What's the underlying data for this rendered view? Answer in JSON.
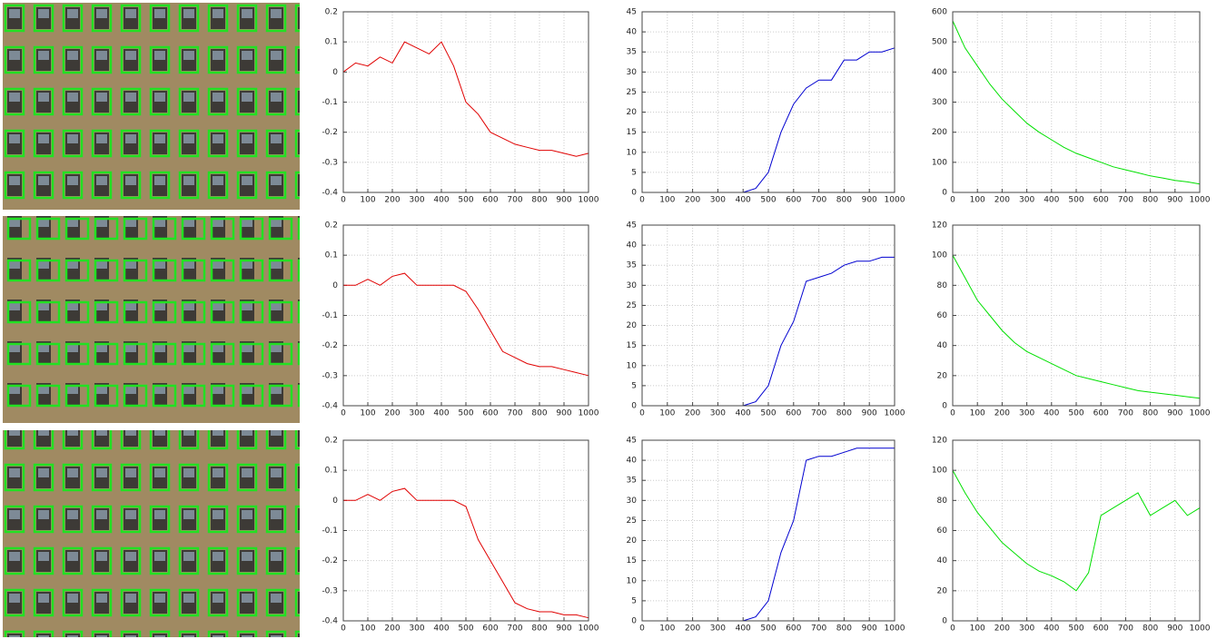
{
  "chart_data": [
    {
      "type": "line",
      "x": [
        0,
        50,
        100,
        150,
        200,
        250,
        300,
        350,
        400,
        450,
        500,
        550,
        600,
        650,
        700,
        750,
        800,
        850,
        900,
        950,
        1000
      ],
      "values": [
        0,
        0.03,
        0.02,
        0.05,
        0.03,
        0.1,
        0.08,
        0.06,
        0.1,
        0.02,
        -0.1,
        -0.14,
        -0.2,
        -0.22,
        -0.24,
        -0.25,
        -0.26,
        -0.26,
        -0.27,
        -0.28,
        -0.27
      ],
      "color": "#e00000",
      "xlim": [
        0,
        1000
      ],
      "ylim": [
        -0.4,
        0.2
      ],
      "xticks": [
        0,
        100,
        200,
        300,
        400,
        500,
        600,
        700,
        800,
        900,
        1000
      ],
      "yticks": [
        -0.4,
        -0.3,
        -0.2,
        -0.1,
        0,
        0.1,
        0.2
      ],
      "grid": true
    },
    {
      "type": "line",
      "x": [
        0,
        50,
        100,
        150,
        200,
        250,
        300,
        350,
        400,
        450,
        500,
        550,
        600,
        650,
        700,
        750,
        800,
        850,
        900,
        950,
        1000
      ],
      "values": [
        0,
        0,
        0,
        0,
        0,
        0,
        0,
        0,
        0,
        1,
        5,
        15,
        22,
        26,
        28,
        28,
        33,
        33,
        35,
        35,
        36
      ],
      "color": "#0000d0",
      "xlim": [
        0,
        1000
      ],
      "ylim": [
        0,
        45
      ],
      "xticks": [
        0,
        100,
        200,
        300,
        400,
        500,
        600,
        700,
        800,
        900,
        1000
      ],
      "yticks": [
        0,
        5,
        10,
        15,
        20,
        25,
        30,
        35,
        40,
        45
      ],
      "grid": true
    },
    {
      "type": "line",
      "x": [
        0,
        50,
        100,
        150,
        200,
        250,
        300,
        350,
        400,
        450,
        500,
        550,
        600,
        650,
        700,
        750,
        800,
        850,
        900,
        950,
        1000
      ],
      "values": [
        570,
        480,
        420,
        360,
        310,
        270,
        230,
        200,
        175,
        150,
        130,
        115,
        100,
        85,
        75,
        65,
        55,
        48,
        40,
        35,
        28
      ],
      "color": "#00e000",
      "xlim": [
        0,
        1000
      ],
      "ylim": [
        0,
        600
      ],
      "xticks": [
        0,
        100,
        200,
        300,
        400,
        500,
        600,
        700,
        800,
        900,
        1000
      ],
      "yticks": [
        0,
        100,
        200,
        300,
        400,
        500,
        600
      ],
      "grid": true
    },
    {
      "type": "line",
      "x": [
        0,
        50,
        100,
        150,
        200,
        250,
        300,
        350,
        400,
        450,
        500,
        550,
        600,
        650,
        700,
        750,
        800,
        850,
        900,
        950,
        1000
      ],
      "values": [
        0,
        0,
        0.02,
        0,
        0.03,
        0.04,
        0,
        0,
        0,
        0,
        -0.02,
        -0.08,
        -0.15,
        -0.22,
        -0.24,
        -0.26,
        -0.27,
        -0.27,
        -0.28,
        -0.29,
        -0.3
      ],
      "color": "#e00000",
      "xlim": [
        0,
        1000
      ],
      "ylim": [
        -0.4,
        0.2
      ],
      "xticks": [
        0,
        100,
        200,
        300,
        400,
        500,
        600,
        700,
        800,
        900,
        1000
      ],
      "yticks": [
        -0.4,
        -0.3,
        -0.2,
        -0.1,
        0,
        0.1,
        0.2
      ],
      "grid": true
    },
    {
      "type": "line",
      "x": [
        0,
        50,
        100,
        150,
        200,
        250,
        300,
        350,
        400,
        450,
        500,
        550,
        600,
        650,
        700,
        750,
        800,
        850,
        900,
        950,
        1000
      ],
      "values": [
        0,
        0,
        0,
        0,
        0,
        0,
        0,
        0,
        0,
        1,
        5,
        15,
        21,
        31,
        32,
        33,
        35,
        36,
        36,
        37,
        37
      ],
      "color": "#0000d0",
      "xlim": [
        0,
        1000
      ],
      "ylim": [
        0,
        45
      ],
      "xticks": [
        0,
        100,
        200,
        300,
        400,
        500,
        600,
        700,
        800,
        900,
        1000
      ],
      "yticks": [
        0,
        5,
        10,
        15,
        20,
        25,
        30,
        35,
        40,
        45
      ],
      "grid": true
    },
    {
      "type": "line",
      "x": [
        0,
        50,
        100,
        150,
        200,
        250,
        300,
        350,
        400,
        450,
        500,
        550,
        600,
        650,
        700,
        750,
        800,
        850,
        900,
        950,
        1000
      ],
      "values": [
        100,
        85,
        70,
        60,
        50,
        42,
        36,
        32,
        28,
        24,
        20,
        18,
        16,
        14,
        12,
        10,
        9,
        8,
        7,
        6,
        5
      ],
      "color": "#00e000",
      "xlim": [
        0,
        1000
      ],
      "ylim": [
        0,
        120
      ],
      "xticks": [
        0,
        100,
        200,
        300,
        400,
        500,
        600,
        700,
        800,
        900,
        1000
      ],
      "yticks": [
        0,
        20,
        40,
        60,
        80,
        100,
        120
      ],
      "grid": true
    },
    {
      "type": "line",
      "x": [
        0,
        50,
        100,
        150,
        200,
        250,
        300,
        350,
        400,
        450,
        500,
        550,
        600,
        650,
        700,
        750,
        800,
        850,
        900,
        950,
        1000
      ],
      "values": [
        0,
        0,
        0.02,
        0,
        0.03,
        0.04,
        0,
        0,
        0,
        0,
        -0.02,
        -0.13,
        -0.2,
        -0.27,
        -0.34,
        -0.36,
        -0.37,
        -0.37,
        -0.38,
        -0.38,
        -0.39
      ],
      "color": "#e00000",
      "xlim": [
        0,
        1000
      ],
      "ylim": [
        -0.4,
        0.2
      ],
      "xticks": [
        0,
        100,
        200,
        300,
        400,
        500,
        600,
        700,
        800,
        900,
        1000
      ],
      "yticks": [
        -0.4,
        -0.3,
        -0.2,
        -0.1,
        0,
        0.1,
        0.2
      ],
      "grid": true
    },
    {
      "type": "line",
      "x": [
        0,
        50,
        100,
        150,
        200,
        250,
        300,
        350,
        400,
        450,
        500,
        550,
        600,
        650,
        700,
        750,
        800,
        850,
        900,
        950,
        1000
      ],
      "values": [
        0,
        0,
        0,
        0,
        0,
        0,
        0,
        0,
        0,
        1,
        5,
        17,
        25,
        40,
        41,
        41,
        42,
        43,
        43,
        43,
        43
      ],
      "color": "#0000d0",
      "xlim": [
        0,
        1000
      ],
      "ylim": [
        0,
        45
      ],
      "xticks": [
        0,
        100,
        200,
        300,
        400,
        500,
        600,
        700,
        800,
        900,
        1000
      ],
      "yticks": [
        0,
        5,
        10,
        15,
        20,
        25,
        30,
        35,
        40,
        45
      ],
      "grid": true
    },
    {
      "type": "line",
      "x": [
        0,
        50,
        100,
        150,
        200,
        250,
        300,
        350,
        400,
        450,
        500,
        550,
        600,
        650,
        700,
        750,
        800,
        850,
        900,
        950,
        1000
      ],
      "values": [
        100,
        85,
        72,
        62,
        52,
        45,
        38,
        33,
        30,
        26,
        20,
        32,
        70,
        75,
        80,
        85,
        70,
        75,
        80,
        70,
        75
      ],
      "color": "#00e000",
      "xlim": [
        0,
        1000
      ],
      "ylim": [
        0,
        120
      ],
      "xticks": [
        0,
        100,
        200,
        300,
        400,
        500,
        600,
        700,
        800,
        900,
        1000
      ],
      "yticks": [
        0,
        20,
        40,
        60,
        80,
        100,
        120
      ],
      "grid": true
    }
  ]
}
